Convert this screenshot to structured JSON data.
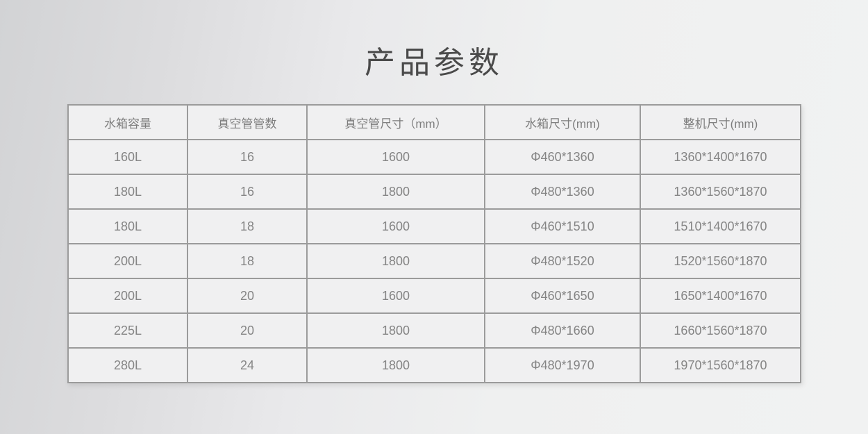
{
  "page": {
    "title": "产品参数"
  },
  "table": {
    "headers": [
      "水箱容量",
      "真空管管数",
      "真空管尺寸（mm）",
      "水箱尺寸(mm)",
      "整机尺寸(mm)"
    ],
    "rows": [
      [
        "160L",
        "16",
        "1600",
        "Φ460*1360",
        "1360*1400*1670"
      ],
      [
        "180L",
        "16",
        "1800",
        "Φ480*1360",
        "1360*1560*1870"
      ],
      [
        "180L",
        "18",
        "1600",
        "Φ460*1510",
        "1510*1400*1670"
      ],
      [
        "200L",
        "18",
        "1800",
        "Φ480*1520",
        "1520*1560*1870"
      ],
      [
        "200L",
        "20",
        "1600",
        "Φ460*1650",
        "1650*1400*1670"
      ],
      [
        "225L",
        "20",
        "1800",
        "Φ480*1660",
        "1660*1560*1870"
      ],
      [
        "280L",
        "24",
        "1800",
        "Φ480*1970",
        "1970*1560*1870"
      ]
    ]
  },
  "colors": {
    "background_left": "#d2d3d5",
    "background_right": "#f1f2f2",
    "table_border": "#9b9b9b",
    "cell_background": "#f0f0f1",
    "header_text": "#7d7d7d",
    "cell_text": "#858585",
    "title_text": "#4a4a4a"
  }
}
